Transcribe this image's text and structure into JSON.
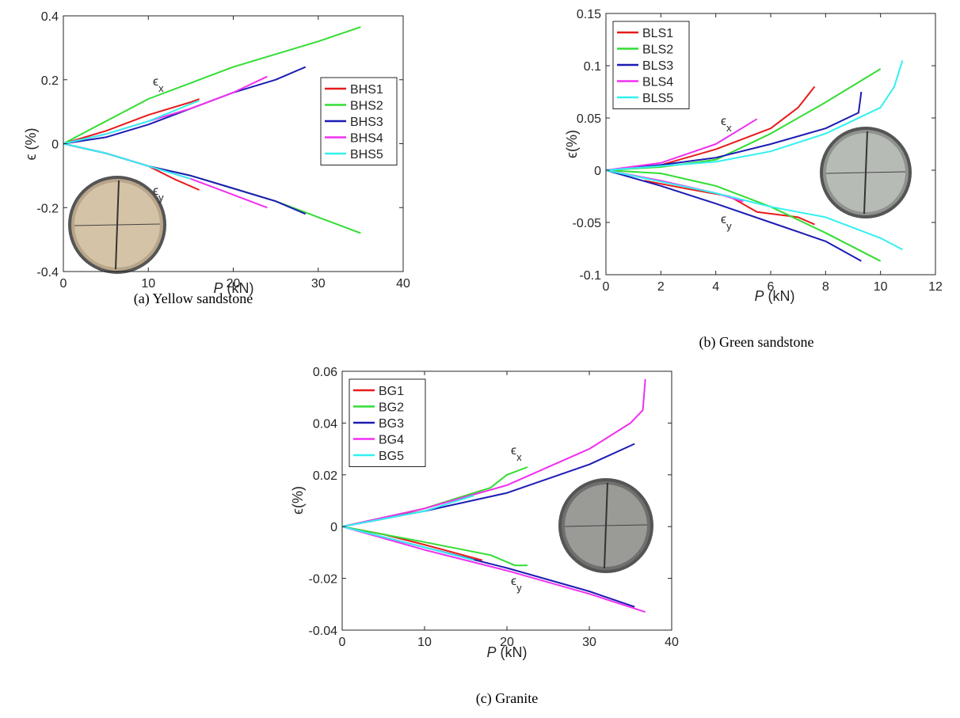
{
  "chart_data": [
    {
      "type": "line",
      "caption": "(a) Yellow sandstone",
      "xlabel": "P",
      "xlabel_unit": "(kN)",
      "ylabel": "ϵ (%)",
      "xlim": [
        0,
        40
      ],
      "ylim": [
        -0.4,
        0.4
      ],
      "xticks": [
        0,
        10,
        20,
        30,
        40
      ],
      "yticks": [
        -0.4,
        -0.2,
        0,
        0.2,
        0.4
      ],
      "legend": "upper right",
      "annotations": [
        {
          "text": "ϵ",
          "sub": "x"
        },
        {
          "text": "ϵ",
          "sub": "y"
        }
      ],
      "series": [
        {
          "name": "BHS1",
          "color": "#e81b1b",
          "curves": [
            {
              "x": [
                0,
                5,
                10,
                15,
                16
              ],
              "values": [
                0,
                0.04,
                0.09,
                0.13,
                0.14
              ]
            },
            {
              "x": [
                0,
                5,
                10,
                13,
                16
              ],
              "values": [
                0,
                -0.03,
                -0.07,
                -0.11,
                -0.145
              ]
            }
          ]
        },
        {
          "name": "BHS2",
          "color": "#33dd33",
          "curves": [
            {
              "x": [
                0,
                5,
                10,
                15,
                20,
                25,
                30,
                35
              ],
              "values": [
                0,
                0.07,
                0.14,
                0.19,
                0.24,
                0.28,
                0.32,
                0.365
              ]
            },
            {
              "x": [
                0,
                5,
                10,
                15,
                20,
                25,
                30,
                35
              ],
              "values": [
                0,
                -0.03,
                -0.07,
                -0.1,
                -0.14,
                -0.18,
                -0.23,
                -0.28
              ]
            }
          ]
        },
        {
          "name": "BHS3",
          "color": "#1c1cb4",
          "curves": [
            {
              "x": [
                0,
                5,
                10,
                15,
                20,
                25,
                28.5
              ],
              "values": [
                0,
                0.02,
                0.06,
                0.11,
                0.16,
                0.2,
                0.24
              ]
            },
            {
              "x": [
                0,
                5,
                10,
                15,
                20,
                25,
                28.5
              ],
              "values": [
                0,
                -0.03,
                -0.07,
                -0.1,
                -0.14,
                -0.18,
                -0.22
              ]
            }
          ]
        },
        {
          "name": "BHS4",
          "color": "#f030f0",
          "curves": [
            {
              "x": [
                0,
                5,
                10,
                15,
                20,
                24
              ],
              "values": [
                0,
                0.03,
                0.07,
                0.11,
                0.16,
                0.21
              ]
            },
            {
              "x": [
                0,
                5,
                10,
                15,
                20,
                24
              ],
              "values": [
                0,
                -0.03,
                -0.07,
                -0.11,
                -0.16,
                -0.2
              ]
            }
          ]
        },
        {
          "name": "BHS5",
          "color": "#33f0f0",
          "curves": [
            {
              "x": [
                0,
                5,
                10,
                16
              ],
              "values": [
                0,
                0.03,
                0.07,
                0.135
              ]
            },
            {
              "x": [
                0,
                5,
                10,
                15
              ],
              "values": [
                0,
                -0.03,
                -0.07,
                -0.11
              ]
            }
          ]
        }
      ]
    },
    {
      "type": "line",
      "caption": "(b) Green sandstone",
      "xlabel": "P",
      "xlabel_unit": "(kN)",
      "ylabel": "ϵ(%)",
      "xlim": [
        0,
        12
      ],
      "ylim": [
        -0.1,
        0.15
      ],
      "xticks": [
        0,
        2,
        4,
        6,
        8,
        10,
        12
      ],
      "yticks": [
        -0.1,
        -0.05,
        0,
        0.05,
        0.1,
        0.15
      ],
      "legend": "upper left",
      "annotations": [
        {
          "text": "ϵ",
          "sub": "x"
        },
        {
          "text": "ϵ",
          "sub": "y"
        }
      ],
      "series": [
        {
          "name": "BLS1",
          "color": "#e81b1b",
          "curves": [
            {
              "x": [
                0,
                2,
                4,
                6,
                7,
                7.6
              ],
              "values": [
                0,
                0.005,
                0.02,
                0.04,
                0.06,
                0.08
              ]
            },
            {
              "x": [
                1.4,
                3,
                4.5,
                5.5,
                7,
                7.6
              ],
              "values": [
                -0.01,
                -0.018,
                -0.025,
                -0.04,
                -0.045,
                -0.052
              ]
            }
          ]
        },
        {
          "name": "BLS2",
          "color": "#33dd33",
          "curves": [
            {
              "x": [
                0,
                2,
                4,
                6,
                8,
                10
              ],
              "values": [
                0,
                0.003,
                0.01,
                0.035,
                0.065,
                0.097
              ]
            },
            {
              "x": [
                0,
                2,
                4,
                6,
                8,
                10
              ],
              "values": [
                0,
                -0.003,
                -0.015,
                -0.035,
                -0.06,
                -0.087
              ]
            }
          ]
        },
        {
          "name": "BLS3",
          "color": "#1c1cb4",
          "curves": [
            {
              "x": [
                0,
                2,
                4,
                6,
                8,
                9.2,
                9.3
              ],
              "values": [
                0,
                0.005,
                0.012,
                0.025,
                0.04,
                0.055,
                0.075
              ]
            },
            {
              "x": [
                0,
                2,
                4,
                6,
                8,
                9.3
              ],
              "values": [
                0,
                -0.015,
                -0.032,
                -0.05,
                -0.068,
                -0.087
              ]
            }
          ]
        },
        {
          "name": "BLS4",
          "color": "#f030f0",
          "curves": [
            {
              "x": [
                0,
                2,
                4,
                5.5
              ],
              "values": [
                0,
                0.007,
                0.025,
                0.049
              ]
            },
            {
              "x": [
                0,
                2,
                4,
                5
              ],
              "values": [
                0,
                -0.01,
                -0.022,
                -0.03
              ]
            }
          ]
        },
        {
          "name": "BLS5",
          "color": "#33f0f0",
          "curves": [
            {
              "x": [
                0,
                4,
                6,
                8,
                10,
                10.5,
                10.8
              ],
              "values": [
                0,
                0.008,
                0.018,
                0.035,
                0.06,
                0.08,
                0.105
              ]
            },
            {
              "x": [
                0,
                4,
                6,
                8,
                10,
                10.8
              ],
              "values": [
                0,
                -0.022,
                -0.035,
                -0.045,
                -0.065,
                -0.076
              ]
            }
          ]
        }
      ]
    },
    {
      "type": "line",
      "caption": "(c) Granite",
      "xlabel": "P",
      "xlabel_unit": "(kN)",
      "ylabel": "ϵ(%)",
      "xlim": [
        0,
        40
      ],
      "ylim": [
        -0.04,
        0.06
      ],
      "xticks": [
        0,
        10,
        20,
        30,
        40
      ],
      "yticks": [
        -0.04,
        -0.02,
        0,
        0.02,
        0.04,
        0.06
      ],
      "legend": "upper left",
      "annotations": [
        {
          "text": "ϵ",
          "sub": "x"
        },
        {
          "text": "ϵ",
          "sub": "y"
        }
      ],
      "series": [
        {
          "name": "BG1",
          "color": "#e81b1b",
          "curves": [
            {
              "x": [
                0,
                5,
                10,
                17
              ],
              "values": [
                0,
                0.003,
                0.007,
                0.014
              ]
            },
            {
              "x": [
                0,
                5,
                10,
                17
              ],
              "values": [
                0,
                -0.003,
                -0.007,
                -0.013
              ]
            }
          ]
        },
        {
          "name": "BG2",
          "color": "#33dd33",
          "curves": [
            {
              "x": [
                0,
                10,
                18,
                20,
                22.5
              ],
              "values": [
                0,
                0.007,
                0.015,
                0.02,
                0.023
              ]
            },
            {
              "x": [
                0,
                10,
                18,
                21,
                22.5
              ],
              "values": [
                0,
                -0.006,
                -0.011,
                -0.015,
                -0.015
              ]
            }
          ]
        },
        {
          "name": "BG3",
          "color": "#1c1cb4",
          "curves": [
            {
              "x": [
                0,
                10,
                20,
                30,
                35.5
              ],
              "values": [
                0,
                0.006,
                0.013,
                0.024,
                0.032
              ]
            },
            {
              "x": [
                0,
                10,
                20,
                30,
                35.5
              ],
              "values": [
                0,
                -0.008,
                -0.016,
                -0.025,
                -0.031
              ]
            }
          ]
        },
        {
          "name": "BG4",
          "color": "#f030f0",
          "curves": [
            {
              "x": [
                0,
                10,
                20,
                30,
                35,
                36.5,
                36.8
              ],
              "values": [
                0,
                0.007,
                0.016,
                0.03,
                0.04,
                0.045,
                0.057
              ]
            },
            {
              "x": [
                0,
                10,
                20,
                30,
                36.8
              ],
              "values": [
                0,
                -0.009,
                -0.017,
                -0.026,
                -0.033
              ]
            }
          ]
        },
        {
          "name": "BG5",
          "color": "#33f0f0",
          "curves": [
            {
              "x": [
                0,
                10,
                16
              ],
              "values": [
                0,
                0.006,
                0.012
              ]
            },
            {
              "x": [
                0,
                10,
                16
              ],
              "values": [
                0,
                -0.008,
                -0.013
              ]
            }
          ]
        }
      ]
    }
  ]
}
